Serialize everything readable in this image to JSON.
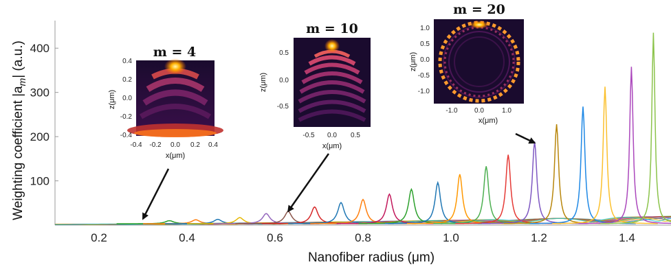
{
  "chart_data": {
    "type": "line",
    "xlabel": "Nanofiber radius (μm)",
    "ylabel": "Weighting coefficient |a",
    "ylabel_sub": "m",
    "ylabel_unit": "| (a.u.)",
    "xlim": [
      0.1,
      1.5
    ],
    "ylim": [
      0,
      450
    ],
    "x_ticks": [
      "0.2",
      "0.4",
      "0.6",
      "0.8",
      "1.0",
      "1.2",
      "1.4"
    ],
    "x_tick_values": [
      0.2,
      0.4,
      0.6,
      0.8,
      1.0,
      1.2,
      1.4
    ],
    "y_ticks": [
      "100",
      "200",
      "300",
      "400"
    ],
    "y_tick_values": [
      100,
      200,
      300,
      400
    ],
    "grid": false,
    "peaks": [
      {
        "x": 0.36,
        "y": 7,
        "color": "#2ca02c"
      },
      {
        "x": 0.42,
        "y": 9,
        "color": "#ff7f0e"
      },
      {
        "x": 0.47,
        "y": 10,
        "color": "#1f77b4"
      },
      {
        "x": 0.52,
        "y": 14,
        "color": "#e6b800"
      },
      {
        "x": 0.58,
        "y": 23,
        "color": "#9467bd"
      },
      {
        "x": 0.63,
        "y": 28,
        "color": "#8c564b"
      },
      {
        "x": 0.69,
        "y": 38,
        "color": "#d62728"
      },
      {
        "x": 0.75,
        "y": 48,
        "color": "#1f77b4"
      },
      {
        "x": 0.8,
        "y": 55,
        "color": "#ff7f0e"
      },
      {
        "x": 0.86,
        "y": 67,
        "color": "#c2185b"
      },
      {
        "x": 0.91,
        "y": 78,
        "color": "#2ca02c"
      },
      {
        "x": 0.97,
        "y": 93,
        "color": "#1f77b4"
      },
      {
        "x": 1.02,
        "y": 112,
        "color": "#ff9800"
      },
      {
        "x": 1.08,
        "y": 130,
        "color": "#4caf50"
      },
      {
        "x": 1.13,
        "y": 156,
        "color": "#e53935"
      },
      {
        "x": 1.19,
        "y": 186,
        "color": "#7e57c2"
      },
      {
        "x": 1.24,
        "y": 225,
        "color": "#b8860b"
      },
      {
        "x": 1.3,
        "y": 265,
        "color": "#1e88e5"
      },
      {
        "x": 1.35,
        "y": 310,
        "color": "#fbc02d"
      },
      {
        "x": 1.41,
        "y": 355,
        "color": "#ab47bc"
      },
      {
        "x": 1.46,
        "y": 432,
        "color": "#8bc34a"
      }
    ],
    "insets": [
      {
        "title": "m = 4",
        "xlabel": "x(μm)",
        "zlabel": "z(μm)",
        "xticks": [
          "-0.4",
          "0.0",
          "0.4"
        ],
        "x_mid_ticks": [
          "-0.2",
          "0.2"
        ],
        "zticks": [
          "0.4",
          "0.2",
          "0.0",
          "-0.2",
          "-0.4"
        ],
        "arrow_target": {
          "x": 0.3,
          "y": 8
        }
      },
      {
        "title": "m = 10",
        "xlabel": "x(μm)",
        "zlabel": "z(μm)",
        "xticks": [
          "-0.5",
          "0.0",
          "0.5"
        ],
        "zticks": [
          "0.5",
          "0.0",
          "-0.5"
        ],
        "arrow_target": {
          "x": 0.63,
          "y": 25
        }
      },
      {
        "title": "m = 20",
        "xlabel": "x(μm)",
        "zlabel": "z(μm)",
        "xticks": [
          "-1.0",
          "0.0",
          "1.0"
        ],
        "zticks": [
          "1.0",
          "0.5",
          "0.0",
          "-0.5",
          "-1.0"
        ],
        "arrow_target": {
          "x": 1.19,
          "y": 186
        }
      }
    ]
  }
}
